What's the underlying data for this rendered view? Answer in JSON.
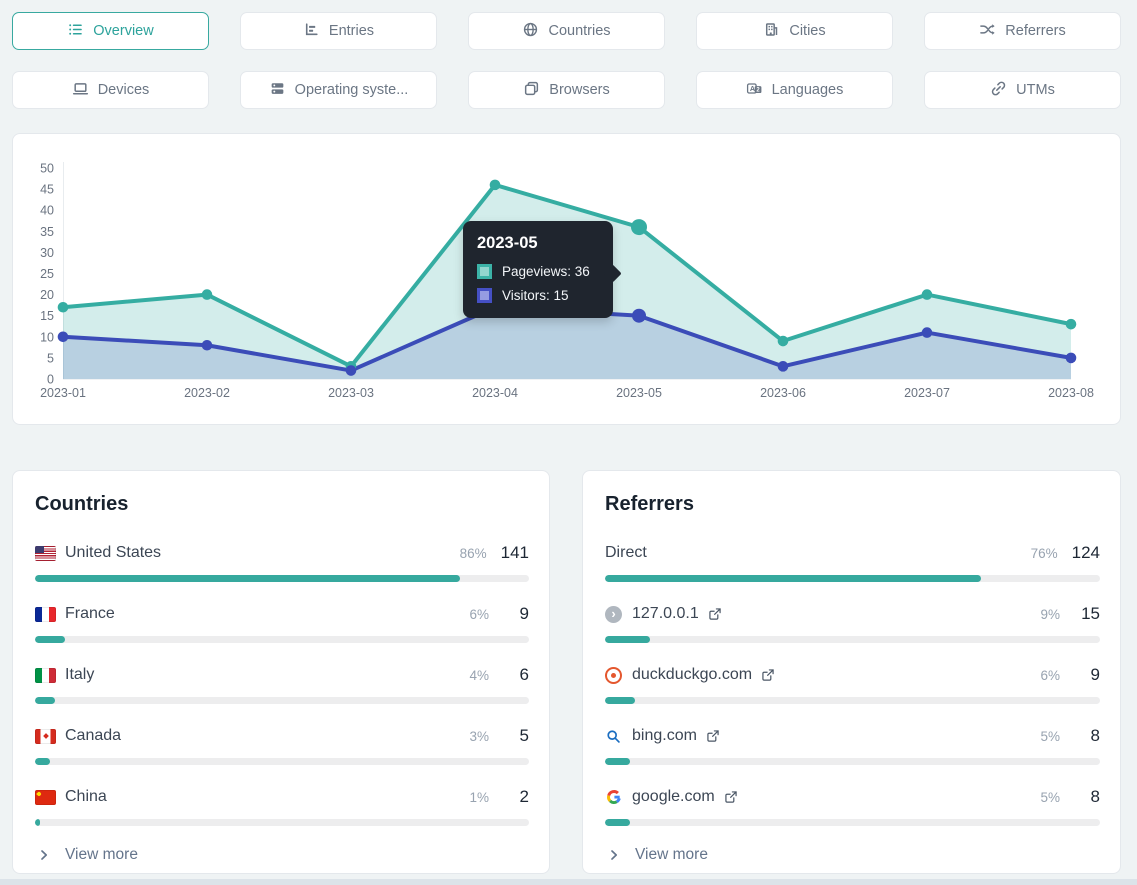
{
  "tabs": [
    {
      "label": "Overview",
      "active": true
    },
    {
      "label": "Entries",
      "active": false
    },
    {
      "label": "Countries",
      "active": false
    },
    {
      "label": "Cities",
      "active": false
    },
    {
      "label": "Referrers",
      "active": false
    },
    {
      "label": "Devices",
      "active": false
    },
    {
      "label": "Operating syste...",
      "active": false
    },
    {
      "label": "Browsers",
      "active": false
    },
    {
      "label": "Languages",
      "active": false
    },
    {
      "label": "UTMs",
      "active": false
    }
  ],
  "chart_data": {
    "type": "line",
    "x": [
      "2023-01",
      "2023-02",
      "2023-03",
      "2023-04",
      "2023-05",
      "2023-06",
      "2023-07",
      "2023-08"
    ],
    "series": [
      {
        "name": "Pageviews",
        "color": "#35ada2",
        "fill": "rgba(53,173,162,0.22)",
        "values": [
          17,
          20,
          3,
          46,
          36,
          9,
          20,
          13
        ]
      },
      {
        "name": "Visitors",
        "color": "#3b4cb8",
        "fill": "rgba(59,76,184,0.18)",
        "values": [
          10,
          8,
          2,
          17,
          15,
          3,
          11,
          5
        ]
      }
    ],
    "ylim": [
      0,
      50
    ],
    "yticks": [
      0,
      5,
      10,
      15,
      20,
      25,
      30,
      35,
      40,
      45,
      50
    ],
    "grid": false,
    "legend_position": "tooltip-only",
    "highlight_index": 4
  },
  "tooltip": {
    "title": "2023-05",
    "rows": [
      {
        "series": "Pageviews",
        "text": "Pageviews: 36"
      },
      {
        "series": "Visitors",
        "text": "Visitors: 15"
      }
    ]
  },
  "countries": {
    "title": "Countries",
    "view_more": "View more",
    "rows": [
      {
        "label": "United States",
        "pct": "86%",
        "pct_num": 86,
        "count": "141",
        "flag": "us"
      },
      {
        "label": "France",
        "pct": "6%",
        "pct_num": 6,
        "count": "9",
        "flag": "fr"
      },
      {
        "label": "Italy",
        "pct": "4%",
        "pct_num": 4,
        "count": "6",
        "flag": "it"
      },
      {
        "label": "Canada",
        "pct": "3%",
        "pct_num": 3,
        "count": "5",
        "flag": "ca"
      },
      {
        "label": "China",
        "pct": "1%",
        "pct_num": 1,
        "count": "2",
        "flag": "cn"
      }
    ]
  },
  "referrers": {
    "title": "Referrers",
    "view_more": "View more",
    "rows": [
      {
        "label": "Direct",
        "pct": "76%",
        "pct_num": 76,
        "count": "124",
        "icon": "none",
        "external": false
      },
      {
        "label": "127.0.0.1",
        "pct": "9%",
        "pct_num": 9,
        "count": "15",
        "icon": "default",
        "external": true
      },
      {
        "label": "duckduckgo.com",
        "pct": "6%",
        "pct_num": 6,
        "count": "9",
        "icon": "duckduckgo",
        "external": true
      },
      {
        "label": "bing.com",
        "pct": "5%",
        "pct_num": 5,
        "count": "8",
        "icon": "bing",
        "external": true
      },
      {
        "label": "google.com",
        "pct": "5%",
        "pct_num": 5,
        "count": "8",
        "icon": "google",
        "external": true
      }
    ]
  },
  "colors": {
    "accent_teal": "#36a99e",
    "accent_indigo": "#3b4cb8",
    "active_tab": "#2da39c",
    "tooltip_bg": "#1f252e",
    "page_bg": "#eff3f4"
  }
}
